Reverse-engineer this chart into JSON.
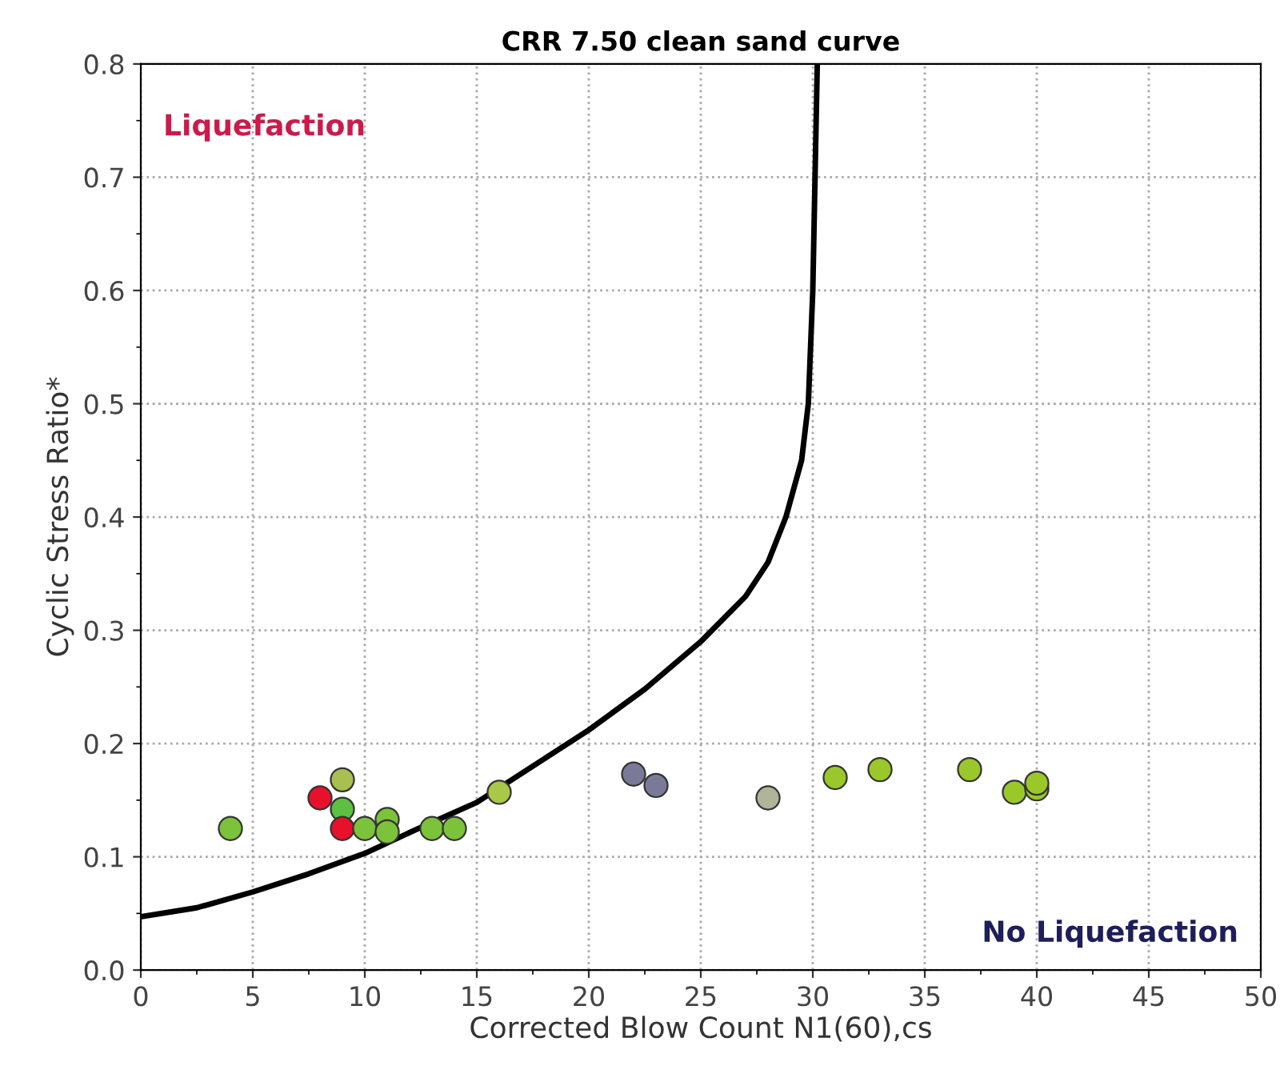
{
  "chart_data": {
    "type": "scatter",
    "title": "CRR 7.50 clean sand curve",
    "xlabel": "Corrected Blow Count N1(60),cs",
    "ylabel": "Cyclic Stress Ratio*",
    "annotations": [
      "Liquefaction",
      "No Liquefaction"
    ],
    "xlim": [
      0,
      50
    ],
    "ylim": [
      0,
      0.8
    ],
    "xticks": [
      0,
      {
        "value": 2.5,
        "label": null
      },
      5,
      {
        "value": 7.5,
        "label": null
      },
      10,
      {
        "value": 12.5,
        "label": null
      },
      15,
      {
        "value": 17.5,
        "label": null
      },
      20,
      {
        "value": 22.5,
        "label": null
      },
      25,
      {
        "value": 27.5,
        "label": null
      },
      30,
      {
        "value": 32.5,
        "label": null
      },
      35,
      {
        "value": 37.5,
        "label": null
      },
      40,
      {
        "value": 42.5,
        "label": null
      },
      45,
      {
        "value": 47.5,
        "label": null
      },
      50
    ],
    "yticks": [
      {
        "value": 0,
        "label": "0.0"
      },
      {
        "value": 0.05,
        "label": null
      },
      0.1,
      {
        "value": 0.15,
        "label": null
      },
      0.2,
      {
        "value": 0.25,
        "label": null
      },
      0.3,
      {
        "value": 0.35,
        "label": null
      },
      0.4,
      {
        "value": 0.45,
        "label": null
      },
      0.5,
      {
        "value": 0.55,
        "label": null
      },
      0.6,
      {
        "value": 0.65,
        "label": null
      },
      0.7,
      {
        "value": 0.75,
        "label": null
      },
      0.8
    ],
    "grid": true,
    "marker": "circle",
    "series": [
      {
        "type": "line",
        "color": "#000000",
        "line_style": "solid",
        "marker": "none",
        "x": [
          0,
          2.5,
          5,
          7.5,
          10,
          12.5,
          15,
          17.5,
          20,
          22.5,
          25,
          27,
          28,
          28.8,
          29.5,
          29.8,
          30,
          30.1,
          30.2
        ],
        "values": [
          0.047,
          0.055,
          0.069,
          0.085,
          0.103,
          0.126,
          0.148,
          0.18,
          0.212,
          0.248,
          0.29,
          0.33,
          0.36,
          0.4,
          0.45,
          0.5,
          0.6,
          0.7,
          0.8
        ]
      },
      {
        "x": [
          4,
          8,
          9,
          9,
          9,
          10,
          11,
          11,
          13,
          14,
          16,
          22,
          23,
          28,
          31,
          33,
          37,
          39,
          40,
          40
        ],
        "values": [
          0.125,
          0.152,
          0.168,
          0.142,
          0.125,
          0.125,
          0.133,
          0.122,
          0.125,
          0.125,
          0.157,
          0.173,
          0.163,
          0.152,
          0.17,
          0.177,
          0.177,
          0.157,
          0.16,
          0.165
        ],
        "colors": [
          "#7cc23a",
          "#e8102a",
          "#a8c050",
          "#5cc040",
          "#e8102a",
          "#7cc23a",
          "#7cc23a",
          "#7cc23a",
          "#7cc23a",
          "#7cc23a",
          "#a8c848",
          "#7a7a98",
          "#7a7a98",
          "#b0b498",
          "#9ac82a",
          "#9ac82a",
          "#9ac82a",
          "#9ac82a",
          "#9ac82a",
          "#9ac82a"
        ]
      }
    ]
  }
}
